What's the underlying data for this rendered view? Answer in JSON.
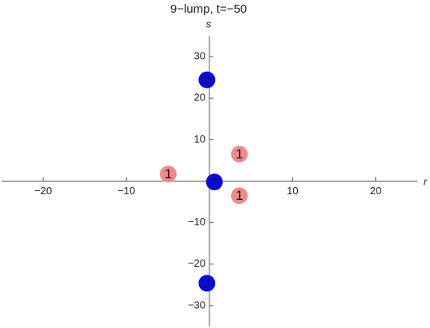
{
  "chart_data": {
    "type": "scatter",
    "title": "9−lump, t=−50",
    "x_label": "r",
    "y_label": "s",
    "xlim": [
      -25,
      25
    ],
    "ylim": [
      -35,
      35
    ],
    "xticks": [
      {
        "value": -20,
        "label": "−20"
      },
      {
        "value": -10,
        "label": "−10"
      },
      10,
      20
    ],
    "yticks": [
      {
        "value": -30,
        "label": "−30"
      },
      {
        "value": -20,
        "label": "−20"
      },
      {
        "value": -10,
        "label": "−10"
      },
      10,
      20,
      30
    ],
    "series": [
      {
        "color": "#f08a8a",
        "x": [
          -4.95,
          3.6,
          3.6
        ],
        "values": [
          1.7,
          6.5,
          -3.5
        ],
        "labels": [
          "1",
          "1",
          "1"
        ]
      },
      {
        "color": "#0a0ad8",
        "x": [
          -0.3,
          -0.3,
          0.6
        ],
        "values": [
          24.4,
          -24.6,
          -0.2
        ],
        "labels": [
          "2",
          "2",
          "2"
        ]
      }
    ]
  }
}
